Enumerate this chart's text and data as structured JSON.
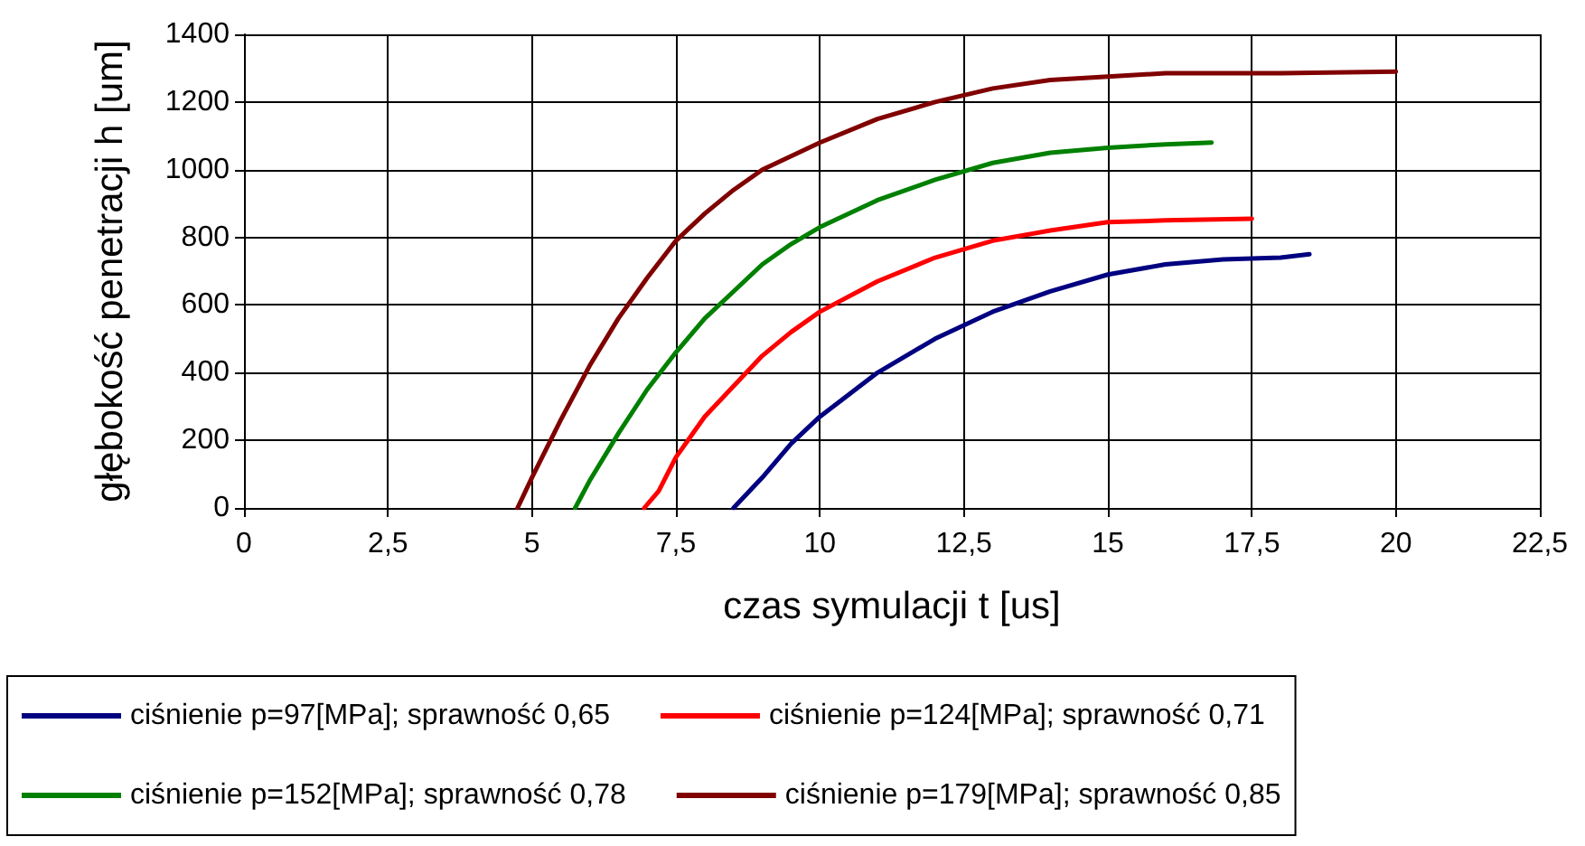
{
  "chart_data": {
    "type": "line",
    "xlabel": "czas symulacji t [us]",
    "ylabel": "głębokość penetracji h [um]",
    "xlim": [
      0,
      22.5
    ],
    "xticks": [
      0,
      {
        "value": 2.5,
        "label": "2,5"
      },
      5,
      {
        "value": 7.5,
        "label": "7,5"
      },
      10,
      {
        "value": 12.5,
        "label": "12,5"
      },
      15,
      {
        "value": 17.5,
        "label": "17,5"
      },
      20,
      {
        "value": 22.5,
        "label": "22,5"
      }
    ],
    "ylim": [
      0,
      1400
    ],
    "yticks": [
      0,
      200,
      400,
      600,
      800,
      1000,
      1200,
      1400
    ],
    "grid": true,
    "legend": "bottom",
    "line_style": "solid",
    "series": [
      {
        "name": "ciśnienie p=97[MPa]; sprawność 0,65",
        "color": "#000080",
        "x": [
          8.5,
          9,
          9.5,
          10,
          11,
          12,
          13,
          14,
          15,
          16,
          17,
          18,
          18.5
        ],
        "values": [
          0,
          90,
          190,
          270,
          400,
          500,
          580,
          640,
          690,
          720,
          735,
          740,
          750
        ]
      },
      {
        "name": "ciśnienie p=124[MPa]; sprawność 0,71",
        "color": "#ff0000",
        "x": [
          6.95,
          7.2,
          7.5,
          8,
          8.5,
          9,
          9.5,
          10,
          11,
          12,
          13,
          14,
          15,
          16,
          17.5
        ],
        "values": [
          0,
          50,
          150,
          270,
          360,
          450,
          520,
          580,
          670,
          740,
          790,
          820,
          845,
          850,
          855
        ]
      },
      {
        "name": "ciśnienie p=152[MPa]; sprawność 0,78",
        "color": "#008000",
        "x": [
          5.75,
          6,
          6.5,
          7,
          7.5,
          8,
          8.5,
          9,
          9.5,
          10,
          11,
          12,
          13,
          14,
          15,
          16,
          16.8
        ],
        "values": [
          0,
          80,
          220,
          350,
          460,
          560,
          640,
          720,
          780,
          830,
          910,
          970,
          1020,
          1050,
          1065,
          1075,
          1080
        ]
      },
      {
        "name": "ciśnienie p=179[MPa]; sprawność 0,85",
        "color": "#800000",
        "x": [
          4.75,
          5,
          5.5,
          6,
          6.5,
          7,
          7.5,
          8,
          8.5,
          9,
          10,
          11,
          12,
          13,
          14,
          15,
          16,
          18,
          20
        ],
        "values": [
          0,
          90,
          260,
          420,
          560,
          680,
          790,
          870,
          940,
          1000,
          1080,
          1150,
          1200,
          1240,
          1265,
          1275,
          1285,
          1285,
          1290
        ]
      }
    ]
  }
}
